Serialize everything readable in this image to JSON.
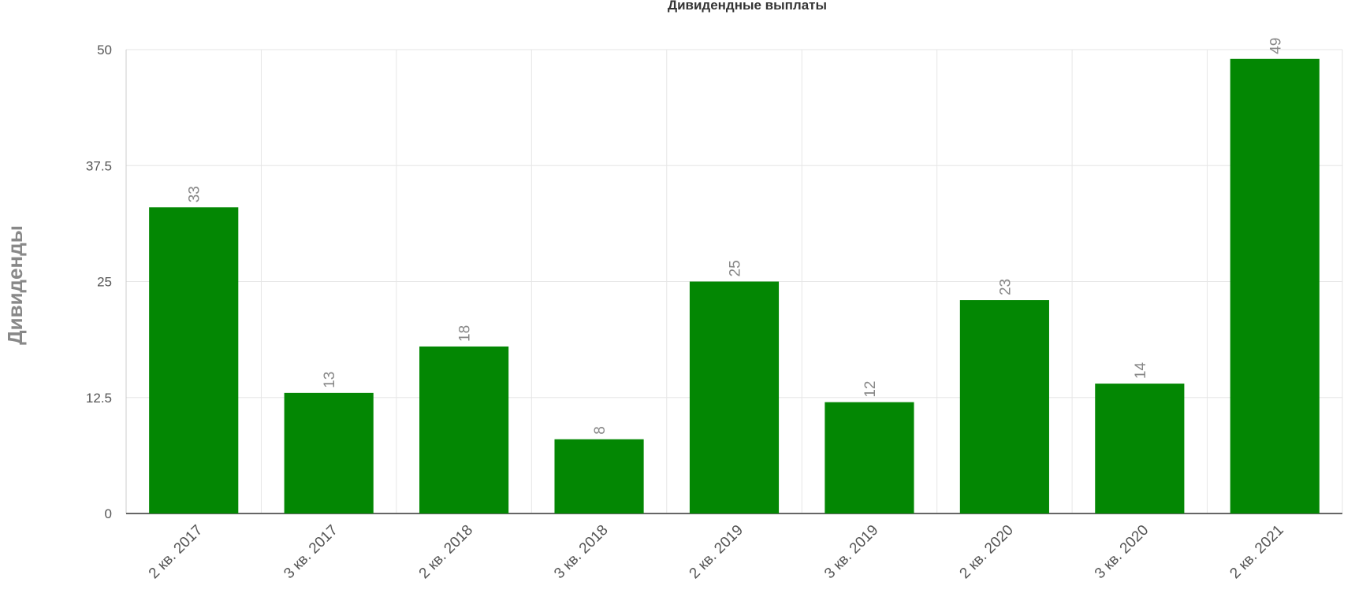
{
  "chart_data": {
    "type": "bar",
    "title": "Дивидендные выплаты",
    "y_label": "Дивиденды",
    "categories": [
      "2 кв. 2017",
      "3 кв. 2017",
      "2 кв. 2018",
      "3 кв. 2018",
      "2 кв. 2019",
      "3 кв. 2019",
      "2 кв. 2020",
      "3 кв. 2020",
      "2 кв. 2021"
    ],
    "values": [
      33,
      13,
      18,
      8,
      25,
      12,
      23,
      14,
      49
    ],
    "color": "#038703",
    "ylim": [
      0,
      50
    ],
    "yticks": [
      0,
      12.5,
      25,
      37.5,
      50
    ],
    "grid": true
  }
}
